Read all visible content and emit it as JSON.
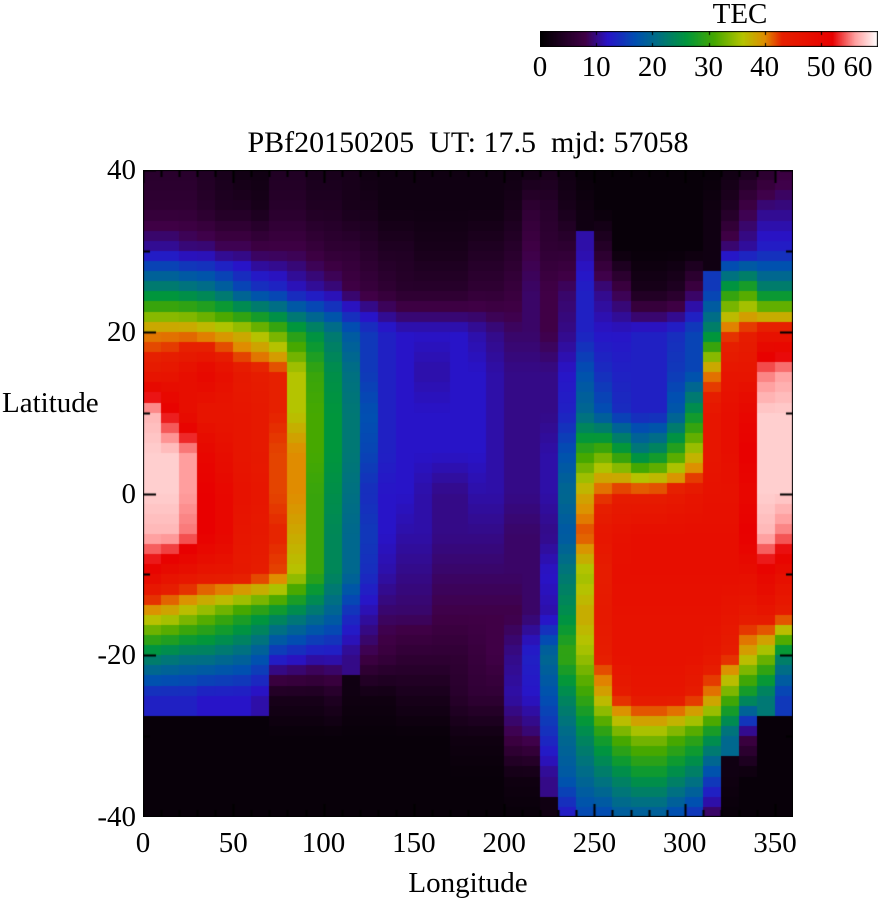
{
  "figure": {
    "title": "PBf20150205  UT: 17.5  mjd: 57058",
    "xlabel": "Longitude",
    "ylabel": "Latitude",
    "x_ticks": [
      0,
      50,
      100,
      150,
      200,
      250,
      300,
      350
    ],
    "y_ticks": [
      40,
      20,
      0,
      -20,
      -40
    ],
    "colorbar": {
      "title": "TEC",
      "ticks": [
        0,
        10,
        20,
        30,
        40,
        50,
        60
      ],
      "min": 0,
      "max": 60
    }
  },
  "chart_data": {
    "type": "heatmap",
    "title": "PBf20150205  UT: 17.5  mjd: 57058",
    "xlabel": "Longitude",
    "ylabel": "Latitude",
    "colorbar_label": "TEC",
    "x_range": [
      0,
      360
    ],
    "y_range": [
      -40,
      40
    ],
    "z_range": [
      0,
      60
    ],
    "lon_cell_deg": 10,
    "lat_sample_deg": 5,
    "lat_samples": [
      40,
      35,
      30,
      25,
      20,
      15,
      10,
      5,
      0,
      -5,
      -10,
      -15,
      -20,
      -25,
      -30,
      -35,
      -40
    ],
    "lon_cell_centers": [
      5,
      15,
      25,
      35,
      45,
      55,
      65,
      75,
      85,
      95,
      105,
      115,
      125,
      135,
      145,
      155,
      165,
      175,
      185,
      195,
      205,
      215,
      225,
      235,
      245,
      255,
      265,
      275,
      285,
      295,
      305,
      315,
      325,
      335,
      345,
      355
    ],
    "values": [
      [
        5,
        5,
        5,
        4,
        3,
        2,
        2,
        4,
        4,
        3,
        3,
        3,
        2,
        2,
        2,
        2,
        2,
        2,
        2,
        2,
        2,
        2,
        3,
        2,
        1,
        1,
        1,
        1,
        1,
        1,
        1,
        1,
        2,
        3,
        5,
        7
      ],
      [
        6,
        6,
        6,
        5,
        4,
        4,
        3,
        5,
        5,
        4,
        4,
        3,
        3,
        2,
        2,
        2,
        2,
        2,
        2,
        2,
        3,
        6,
        5,
        3,
        2,
        1,
        1,
        1,
        1,
        1,
        1,
        2,
        4,
        8,
        10,
        10
      ],
      [
        11,
        11,
        10,
        10,
        9,
        9,
        8,
        8,
        8,
        7,
        6,
        6,
        5,
        4,
        4,
        3,
        3,
        3,
        4,
        4,
        5,
        8,
        6,
        6,
        11,
        5,
        1,
        1,
        1,
        1,
        1,
        2,
        10,
        11,
        13,
        13
      ],
      [
        24,
        24,
        23,
        22,
        20,
        17,
        15,
        14,
        12,
        11,
        10,
        8,
        7,
        6,
        5,
        5,
        5,
        5,
        6,
        6,
        7,
        9,
        8,
        9,
        13,
        10,
        8,
        3,
        3,
        4,
        8,
        15,
        28,
        30,
        24,
        24
      ],
      [
        40,
        40,
        40,
        39,
        38,
        37,
        35,
        32,
        28,
        25,
        22,
        18,
        15,
        13,
        12,
        12,
        12,
        12,
        11,
        10,
        9,
        9,
        8,
        10,
        13,
        12,
        12,
        13,
        13,
        14,
        16,
        24,
        42,
        44,
        46,
        46
      ],
      [
        45,
        46,
        48,
        50,
        48,
        45,
        44,
        43,
        36,
        30,
        25,
        21,
        15,
        13,
        12,
        11,
        11,
        12,
        12,
        11,
        10,
        10,
        10,
        12,
        17,
        14,
        13,
        13,
        13,
        15,
        16,
        40,
        46,
        46,
        55,
        56
      ],
      [
        57,
        52,
        48,
        46,
        46,
        46,
        45,
        43,
        36,
        31,
        26,
        22,
        17,
        13,
        12,
        12,
        12,
        12,
        12,
        11,
        10,
        10,
        10,
        13,
        20,
        17,
        14,
        13,
        13,
        18,
        26,
        46,
        48,
        50,
        58,
        58
      ],
      [
        58,
        58,
        56,
        50,
        48,
        46,
        45,
        42,
        40,
        31,
        26,
        22,
        16,
        13,
        12,
        12,
        12,
        12,
        12,
        11,
        10,
        10,
        11,
        17,
        30,
        32,
        28,
        23,
        25,
        30,
        36,
        46,
        48,
        52,
        58,
        58
      ],
      [
        58,
        58,
        56,
        52,
        50,
        47,
        46,
        42,
        40,
        30,
        25,
        21,
        14,
        12,
        12,
        11,
        10,
        10,
        11,
        11,
        10,
        10,
        11,
        20,
        38,
        42,
        44,
        44,
        44,
        45,
        46,
        47,
        47,
        50,
        58,
        58
      ],
      [
        57,
        57,
        55,
        52,
        50,
        46,
        45,
        43,
        38,
        30,
        24,
        20,
        15,
        12,
        11,
        11,
        10,
        10,
        10,
        10,
        9,
        9,
        10,
        18,
        42,
        46,
        47,
        48,
        48,
        48,
        48,
        48,
        48,
        52,
        57,
        55
      ],
      [
        50,
        48,
        47,
        46,
        46,
        45,
        44,
        42,
        36,
        30,
        24,
        20,
        14,
        11,
        10,
        10,
        9,
        9,
        9,
        9,
        9,
        9,
        12,
        22,
        35,
        44,
        48,
        48,
        48,
        48,
        48,
        48,
        48,
        48,
        50,
        48
      ],
      [
        38,
        37,
        35,
        33,
        31,
        29,
        27,
        25,
        23,
        21,
        19,
        14,
        11,
        9,
        9,
        9,
        8,
        8,
        8,
        8,
        8,
        9,
        11,
        25,
        38,
        45,
        47,
        47,
        47,
        47,
        47,
        47,
        46,
        45,
        46,
        44
      ],
      [
        24,
        23,
        22,
        22,
        21,
        20,
        18,
        14,
        13,
        12,
        12,
        10,
        8,
        7,
        6,
        6,
        6,
        6,
        7,
        8,
        10,
        13,
        20,
        30,
        35,
        44,
        47,
        47,
        47,
        47,
        47,
        46,
        44,
        38,
        34,
        24
      ],
      [
        13,
        13,
        13,
        12,
        12,
        12,
        11,
        3,
        3,
        3,
        4,
        2,
        2,
        2,
        3,
        3,
        3,
        5,
        6,
        6,
        11,
        12,
        17,
        24,
        30,
        38,
        44,
        46,
        46,
        46,
        44,
        40,
        32,
        26,
        22,
        15
      ],
      [
        1,
        1,
        1,
        1,
        1,
        1,
        1,
        1,
        1,
        1,
        1,
        1,
        1,
        1,
        1,
        1,
        1,
        2,
        2,
        2,
        8,
        9,
        14,
        20,
        24,
        28,
        32,
        34,
        34,
        32,
        30,
        26,
        20,
        8,
        1,
        1
      ],
      [
        1,
        1,
        1,
        1,
        1,
        1,
        1,
        1,
        1,
        1,
        1,
        1,
        1,
        1,
        1,
        1,
        1,
        1,
        1,
        1,
        2,
        2,
        10,
        18,
        20,
        22,
        24,
        26,
        26,
        24,
        22,
        16,
        2,
        1,
        1,
        1
      ],
      [
        1,
        1,
        1,
        1,
        1,
        1,
        1,
        1,
        1,
        1,
        1,
        1,
        1,
        1,
        1,
        1,
        1,
        1,
        1,
        1,
        1,
        1,
        2,
        12,
        16,
        16,
        18,
        18,
        18,
        16,
        14,
        8,
        1,
        1,
        1,
        1
      ]
    ],
    "palette": [
      [
        0,
        "#000000"
      ],
      [
        8,
        "#400046"
      ],
      [
        12,
        "#2814c8"
      ],
      [
        17,
        "#0050b0"
      ],
      [
        21,
        "#007082"
      ],
      [
        26,
        "#00963c"
      ],
      [
        31,
        "#46a800"
      ],
      [
        36,
        "#b4c400"
      ],
      [
        40,
        "#e08c00"
      ],
      [
        43,
        "#e62000"
      ],
      [
        52,
        "#e80000"
      ],
      [
        56,
        "#ff9e9e"
      ],
      [
        60,
        "#ffffff"
      ]
    ],
    "legend_position": "top-right",
    "grid": false
  }
}
